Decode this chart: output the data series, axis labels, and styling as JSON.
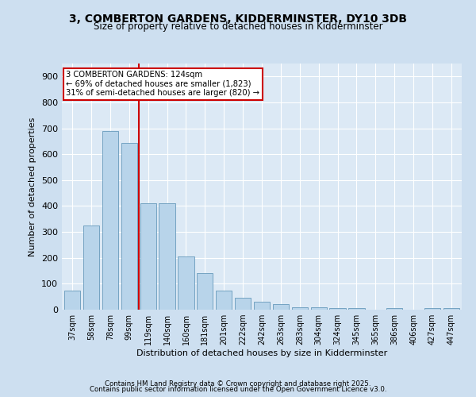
{
  "title1": "3, COMBERTON GARDENS, KIDDERMINSTER, DY10 3DB",
  "title2": "Size of property relative to detached houses in Kidderminster",
  "xlabel": "Distribution of detached houses by size in Kidderminster",
  "ylabel": "Number of detached properties",
  "categories": [
    "37sqm",
    "58sqm",
    "78sqm",
    "99sqm",
    "119sqm",
    "140sqm",
    "160sqm",
    "181sqm",
    "201sqm",
    "222sqm",
    "242sqm",
    "263sqm",
    "283sqm",
    "304sqm",
    "324sqm",
    "345sqm",
    "365sqm",
    "386sqm",
    "406sqm",
    "427sqm",
    "447sqm"
  ],
  "values": [
    75,
    325,
    690,
    645,
    410,
    410,
    205,
    140,
    75,
    45,
    30,
    20,
    10,
    10,
    5,
    5,
    0,
    5,
    0,
    5,
    5
  ],
  "bar_color": "#b8d4ea",
  "bar_edge_color": "#6699bb",
  "red_line_index": 4,
  "annotation_title": "3 COMBERTON GARDENS: 124sqm",
  "annotation_line1": "← 69% of detached houses are smaller (1,823)",
  "annotation_line2": "31% of semi-detached houses are larger (820) →",
  "annotation_box_color": "#ffffff",
  "annotation_border_color": "#cc0000",
  "red_line_color": "#cc0000",
  "background_color": "#cddff0",
  "plot_background_color": "#dce9f5",
  "footer1": "Contains HM Land Registry data © Crown copyright and database right 2025.",
  "footer2": "Contains public sector information licensed under the Open Government Licence v3.0.",
  "ylim": [
    0,
    950
  ],
  "yticks": [
    0,
    100,
    200,
    300,
    400,
    500,
    600,
    700,
    800,
    900
  ]
}
